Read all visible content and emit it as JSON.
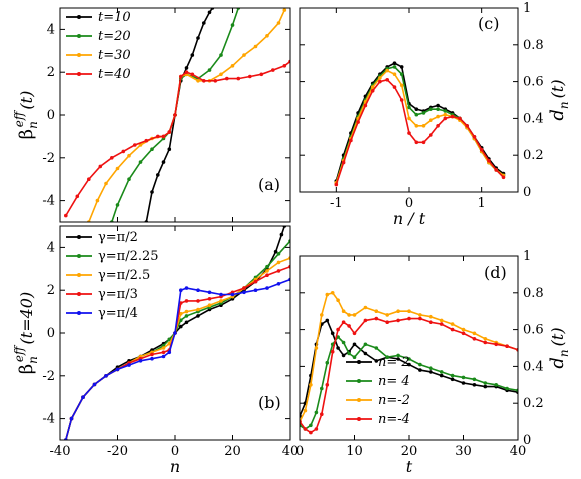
{
  "chart_data": [
    {
      "panel": "(a)",
      "type": "line",
      "ylabel": "β",
      "ylabel_sub": "n",
      "ylabel_sup": "eff",
      "ylabel_tail": "(t)",
      "xlim": [
        -40,
        40
      ],
      "ylim": [
        -5,
        5
      ],
      "xticks": [
        "-40",
        "-20",
        "0",
        "20",
        "40"
      ],
      "yticks": [
        "-4",
        "-2",
        "0",
        "2",
        "4"
      ],
      "legend_position": "top-left",
      "series": [
        {
          "name": "t=10",
          "color": "#000000",
          "x": [
            -10,
            -8,
            -6,
            -4,
            -2,
            0,
            2,
            4,
            6,
            8,
            10,
            12,
            13
          ],
          "y": [
            -5,
            -3.6,
            -2.8,
            -2.2,
            -1.6,
            0,
            1.6,
            2.2,
            2.8,
            3.6,
            4.3,
            4.8,
            5
          ]
        },
        {
          "name": "t=20",
          "color": "#1a8a1a",
          "x": [
            -22,
            -20,
            -16,
            -12,
            -8,
            -4,
            -2,
            0,
            2,
            4,
            8,
            12,
            16,
            20,
            22
          ],
          "y": [
            -5,
            -4.2,
            -3.0,
            -2.2,
            -1.6,
            -1.1,
            -0.8,
            0,
            1.7,
            1.9,
            1.7,
            2.1,
            2.8,
            4.2,
            5
          ]
        },
        {
          "name": "t=30",
          "color": "#ffa500",
          "x": [
            -30,
            -27,
            -24,
            -20,
            -16,
            -12,
            -8,
            -4,
            -2,
            0,
            2,
            4,
            8,
            12,
            16,
            20,
            24,
            28,
            32,
            36,
            38
          ],
          "y": [
            -5,
            -4.0,
            -3.2,
            -2.5,
            -1.9,
            -1.4,
            -1.1,
            -1.0,
            -0.8,
            0,
            1.8,
            1.9,
            1.6,
            1.6,
            1.9,
            2.3,
            2.8,
            3.2,
            3.7,
            4.3,
            4.9
          ]
        },
        {
          "name": "t=40",
          "color": "#ee1111",
          "x": [
            -38,
            -34,
            -30,
            -26,
            -22,
            -18,
            -14,
            -10,
            -6,
            -4,
            -2,
            0,
            2,
            4,
            6,
            10,
            14,
            18,
            22,
            26,
            30,
            34,
            38,
            40
          ],
          "y": [
            -4.7,
            -3.8,
            -3.0,
            -2.4,
            -2.0,
            -1.7,
            -1.4,
            -1.2,
            -1.0,
            -1.0,
            -0.8,
            0,
            1.8,
            2.0,
            1.9,
            1.6,
            1.6,
            1.7,
            1.7,
            1.8,
            1.9,
            2.1,
            2.3,
            2.5
          ]
        }
      ]
    },
    {
      "panel": "(b)",
      "type": "line",
      "ylabel": "β",
      "ylabel_sub": "n",
      "ylabel_sup": "eff",
      "ylabel_tail": "(t=40)",
      "xlabel": "n",
      "xlim": [
        -40,
        40
      ],
      "ylim": [
        -5,
        5
      ],
      "xticks": [
        "-40",
        "-20",
        "0",
        "20",
        "40"
      ],
      "yticks": [
        "-4",
        "-2",
        "0",
        "2",
        "4"
      ],
      "legend_position": "top-left",
      "series": [
        {
          "name": "γ=π/2",
          "color": "#000000",
          "x": [
            -38,
            -36,
            -32,
            -28,
            -24,
            -20,
            -16,
            -12,
            -8,
            -4,
            -2,
            0,
            2,
            4,
            8,
            12,
            16,
            20,
            24,
            28,
            32,
            35,
            37,
            38
          ],
          "y": [
            -5,
            -4.0,
            -3.0,
            -2.4,
            -2.0,
            -1.6,
            -1.3,
            -1.1,
            -0.8,
            -0.5,
            -0.3,
            0,
            0.3,
            0.5,
            0.8,
            1.1,
            1.3,
            1.6,
            2.0,
            2.4,
            3.0,
            3.8,
            4.6,
            5
          ]
        },
        {
          "name": "γ=π/2.25",
          "color": "#1a8a1a",
          "x": [
            -38,
            -36,
            -32,
            -28,
            -24,
            -20,
            -16,
            -12,
            -8,
            -4,
            -2,
            0,
            2,
            4,
            8,
            12,
            16,
            20,
            24,
            28,
            32,
            36,
            40
          ],
          "y": [
            -5,
            -4.0,
            -3.0,
            -2.4,
            -2.0,
            -1.7,
            -1.4,
            -1.1,
            -0.9,
            -0.6,
            -0.3,
            0,
            0.6,
            0.8,
            1.0,
            1.2,
            1.4,
            1.7,
            2.1,
            2.6,
            3.1,
            3.7,
            4.3
          ]
        },
        {
          "name": "γ=π/2.5",
          "color": "#ffa500",
          "x": [
            -38,
            -36,
            -32,
            -28,
            -24,
            -20,
            -16,
            -12,
            -8,
            -4,
            -2,
            0,
            2,
            4,
            8,
            12,
            16,
            20,
            24,
            28,
            32,
            36,
            40
          ],
          "y": [
            -5,
            -4.0,
            -3.0,
            -2.4,
            -2.0,
            -1.7,
            -1.4,
            -1.1,
            -0.9,
            -0.7,
            -0.5,
            0,
            0.9,
            1.0,
            1.1,
            1.3,
            1.5,
            1.7,
            2.1,
            2.5,
            2.9,
            3.3,
            3.5
          ]
        },
        {
          "name": "γ=π/3",
          "color": "#ee1111",
          "x": [
            -38,
            -36,
            -32,
            -28,
            -24,
            -20,
            -16,
            -12,
            -8,
            -4,
            -2,
            0,
            2,
            4,
            8,
            12,
            16,
            20,
            24,
            28,
            32,
            36,
            40
          ],
          "y": [
            -5,
            -4.0,
            -3.0,
            -2.4,
            -2.0,
            -1.7,
            -1.4,
            -1.2,
            -1.0,
            -0.9,
            -0.8,
            0,
            1.4,
            1.5,
            1.5,
            1.6,
            1.7,
            1.9,
            2.1,
            2.4,
            2.7,
            2.9,
            3.1
          ]
        },
        {
          "name": "γ=π/4",
          "color": "#1111ee",
          "x": [
            -38,
            -36,
            -32,
            -28,
            -24,
            -20,
            -16,
            -12,
            -8,
            -4,
            -2,
            0,
            2,
            4,
            8,
            12,
            16,
            20,
            24,
            28,
            32,
            36,
            40
          ],
          "y": [
            -5,
            -4.0,
            -3.0,
            -2.4,
            -2.0,
            -1.7,
            -1.5,
            -1.3,
            -1.2,
            -1.1,
            -0.9,
            0,
            2.0,
            2.1,
            2.0,
            1.9,
            1.8,
            1.8,
            1.9,
            2.0,
            2.1,
            2.3,
            2.5
          ]
        }
      ]
    },
    {
      "panel": "(c)",
      "type": "line",
      "xlabel": "n / t",
      "ylabel": "d",
      "ylabel_sub": "n",
      "ylabel_tail": "(t)",
      "xlim": [
        -1.5,
        1.5
      ],
      "ylim": [
        0,
        1
      ],
      "xticks": [
        "-1",
        "0",
        "1"
      ],
      "yticks": [
        "0",
        "0.2",
        "0.4",
        "0.6",
        "0.8",
        "1"
      ],
      "series": [
        {
          "color": "#000000",
          "x": [
            -1.0,
            -0.9,
            -0.8,
            -0.7,
            -0.6,
            -0.5,
            -0.4,
            -0.3,
            -0.2,
            -0.1,
            0.0,
            0.1,
            0.2,
            0.3,
            0.4,
            0.5,
            0.6,
            0.7,
            0.8,
            0.9,
            1.0,
            1.1,
            1.2,
            1.3
          ],
          "y": [
            0.06,
            0.2,
            0.32,
            0.43,
            0.52,
            0.59,
            0.64,
            0.68,
            0.7,
            0.68,
            0.48,
            0.45,
            0.44,
            0.46,
            0.47,
            0.45,
            0.43,
            0.4,
            0.36,
            0.3,
            0.24,
            0.18,
            0.13,
            0.1
          ]
        },
        {
          "color": "#1a8a1a",
          "x": [
            -1.0,
            -0.9,
            -0.8,
            -0.7,
            -0.6,
            -0.5,
            -0.4,
            -0.3,
            -0.2,
            -0.1,
            0.0,
            0.1,
            0.2,
            0.3,
            0.4,
            0.5,
            0.6,
            0.7,
            0.8,
            0.9,
            1.0,
            1.1,
            1.2,
            1.3
          ],
          "y": [
            0.05,
            0.18,
            0.3,
            0.41,
            0.5,
            0.58,
            0.63,
            0.67,
            0.68,
            0.64,
            0.46,
            0.42,
            0.43,
            0.45,
            0.45,
            0.44,
            0.42,
            0.4,
            0.35,
            0.29,
            0.22,
            0.16,
            0.12,
            0.09
          ]
        },
        {
          "color": "#ffa500",
          "x": [
            -1.0,
            -0.9,
            -0.8,
            -0.7,
            -0.6,
            -0.5,
            -0.4,
            -0.3,
            -0.2,
            -0.1,
            0.0,
            0.1,
            0.2,
            0.3,
            0.4,
            0.5,
            0.6,
            0.7,
            0.8,
            0.9,
            1.0,
            1.1,
            1.2,
            1.3
          ],
          "y": [
            0.05,
            0.17,
            0.29,
            0.4,
            0.49,
            0.57,
            0.62,
            0.66,
            0.64,
            0.58,
            0.4,
            0.36,
            0.36,
            0.39,
            0.41,
            0.42,
            0.41,
            0.39,
            0.35,
            0.29,
            0.22,
            0.16,
            0.12,
            0.09
          ]
        },
        {
          "color": "#ee1111",
          "x": [
            -1.0,
            -0.9,
            -0.8,
            -0.7,
            -0.6,
            -0.5,
            -0.4,
            -0.3,
            -0.2,
            -0.1,
            0.0,
            0.1,
            0.2,
            0.3,
            0.4,
            0.5,
            0.6,
            0.7,
            0.8,
            0.9,
            1.0,
            1.1,
            1.2,
            1.3
          ],
          "y": [
            0.04,
            0.16,
            0.28,
            0.38,
            0.47,
            0.55,
            0.6,
            0.61,
            0.57,
            0.5,
            0.32,
            0.27,
            0.27,
            0.31,
            0.36,
            0.4,
            0.41,
            0.4,
            0.36,
            0.3,
            0.23,
            0.17,
            0.12,
            0.08
          ]
        }
      ]
    },
    {
      "panel": "(d)",
      "type": "line",
      "xlabel": "t",
      "ylabel": "d",
      "ylabel_sub": "n",
      "ylabel_tail": "(t)",
      "xlim": [
        0,
        40
      ],
      "ylim": [
        0,
        1
      ],
      "xticks": [
        "0",
        "10",
        "20",
        "30",
        "40"
      ],
      "yticks": [
        "0",
        "0.2",
        "0.4",
        "0.6",
        "0.8",
        "1"
      ],
      "legend_position": "bottom-left",
      "series": [
        {
          "name": "n= 2",
          "color": "#000000",
          "x": [
            0,
            1,
            2,
            3,
            4,
            5,
            6,
            7,
            8,
            9,
            10,
            12,
            14,
            16,
            18,
            20,
            22,
            24,
            26,
            28,
            30,
            32,
            34,
            36,
            38,
            40
          ],
          "y": [
            0.13,
            0.2,
            0.35,
            0.52,
            0.63,
            0.65,
            0.58,
            0.5,
            0.46,
            0.48,
            0.52,
            0.47,
            0.43,
            0.45,
            0.44,
            0.41,
            0.38,
            0.37,
            0.35,
            0.33,
            0.31,
            0.3,
            0.29,
            0.29,
            0.27,
            0.26
          ]
        },
        {
          "name": "n= 4",
          "color": "#1a8a1a",
          "x": [
            0,
            1,
            2,
            3,
            4,
            5,
            6,
            7,
            8,
            9,
            10,
            12,
            14,
            16,
            18,
            20,
            22,
            24,
            26,
            28,
            30,
            32,
            34,
            36,
            38,
            40
          ],
          "y": [
            0.08,
            0.06,
            0.08,
            0.15,
            0.28,
            0.42,
            0.52,
            0.56,
            0.53,
            0.47,
            0.45,
            0.52,
            0.5,
            0.45,
            0.46,
            0.44,
            0.41,
            0.39,
            0.37,
            0.35,
            0.34,
            0.33,
            0.31,
            0.3,
            0.28,
            0.27
          ]
        },
        {
          "name": "n=-2",
          "color": "#ffa500",
          "x": [
            0,
            1,
            2,
            3,
            4,
            5,
            6,
            7,
            8,
            9,
            10,
            12,
            14,
            16,
            18,
            20,
            22,
            24,
            26,
            28,
            30,
            32,
            34,
            36,
            38,
            40
          ],
          "y": [
            0.1,
            0.16,
            0.3,
            0.5,
            0.68,
            0.79,
            0.8,
            0.76,
            0.7,
            0.68,
            0.68,
            0.72,
            0.7,
            0.68,
            0.7,
            0.7,
            0.68,
            0.67,
            0.65,
            0.63,
            0.6,
            0.58,
            0.55,
            0.53,
            0.51,
            0.49
          ]
        },
        {
          "name": "n=-4",
          "color": "#ee1111",
          "x": [
            0,
            1,
            2,
            3,
            4,
            5,
            6,
            7,
            8,
            9,
            10,
            12,
            14,
            16,
            18,
            20,
            22,
            24,
            26,
            28,
            30,
            32,
            34,
            36,
            38,
            40
          ],
          "y": [
            0.1,
            0.06,
            0.04,
            0.06,
            0.14,
            0.3,
            0.48,
            0.6,
            0.64,
            0.62,
            0.58,
            0.65,
            0.66,
            0.64,
            0.65,
            0.66,
            0.66,
            0.64,
            0.63,
            0.6,
            0.58,
            0.55,
            0.53,
            0.52,
            0.51,
            0.49
          ]
        }
      ]
    }
  ]
}
